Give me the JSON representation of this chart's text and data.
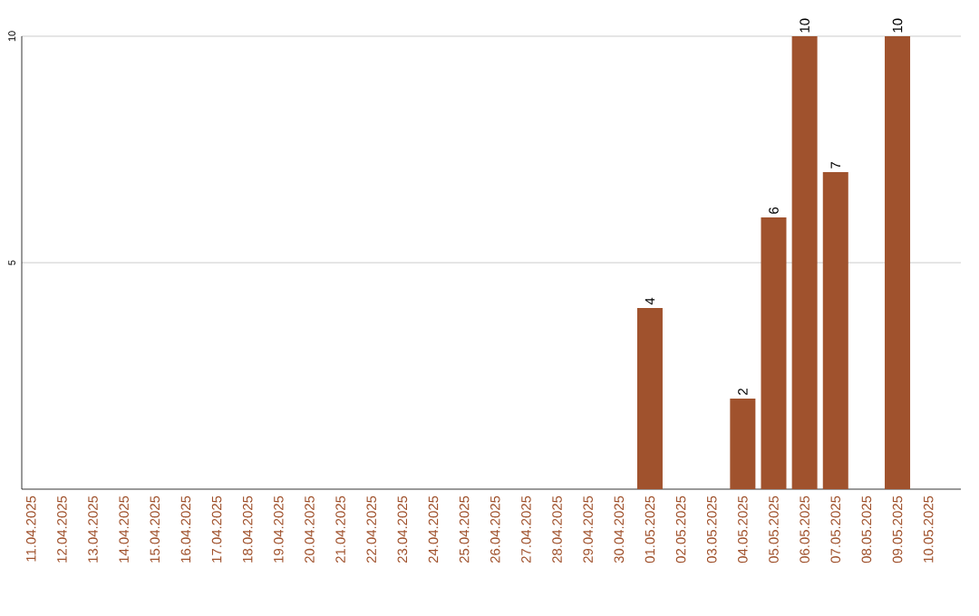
{
  "chart_data": {
    "type": "bar",
    "categories": [
      "11.04.2025",
      "12.04.2025",
      "13.04.2025",
      "14.04.2025",
      "15.04.2025",
      "16.04.2025",
      "17.04.2025",
      "18.04.2025",
      "19.04.2025",
      "20.04.2025",
      "21.04.2025",
      "22.04.2025",
      "23.04.2025",
      "24.04.2025",
      "25.04.2025",
      "26.04.2025",
      "27.04.2025",
      "28.04.2025",
      "29.04.2025",
      "30.04.2025",
      "01.05.2025",
      "02.05.2025",
      "03.05.2025",
      "04.05.2025",
      "05.05.2025",
      "06.05.2025",
      "07.05.2025",
      "08.05.2025",
      "09.05.2025",
      "10.05.2025"
    ],
    "values": [
      0,
      0,
      0,
      0,
      0,
      0,
      0,
      0,
      0,
      0,
      0,
      0,
      0,
      0,
      0,
      0,
      0,
      0,
      0,
      0,
      4,
      0,
      0,
      2,
      6,
      10,
      7,
      0,
      10,
      0
    ],
    "value_labels": [
      null,
      null,
      null,
      null,
      null,
      null,
      null,
      null,
      null,
      null,
      null,
      null,
      null,
      null,
      null,
      null,
      null,
      null,
      null,
      null,
      "4",
      null,
      null,
      "2",
      "6",
      "10",
      "7",
      null,
      "10",
      null
    ],
    "color": "#a0522d",
    "ylim": [
      0,
      10
    ],
    "yticks": [
      5,
      10
    ],
    "grid": "y"
  }
}
